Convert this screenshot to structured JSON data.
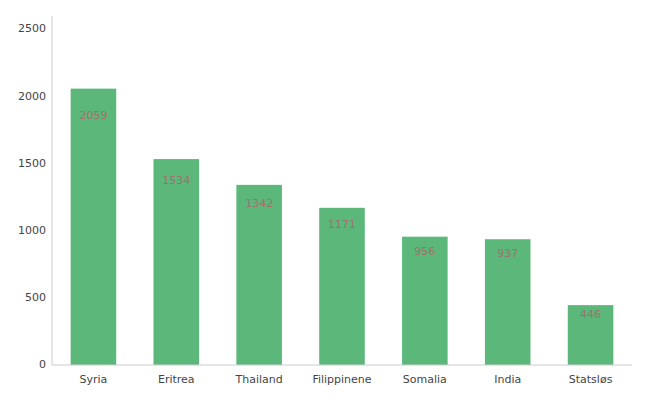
{
  "chart_data": {
    "type": "bar",
    "categories": [
      "Syria",
      "Eritrea",
      "Thailand",
      "Filippinene",
      "Somalia",
      "India",
      "Statsløs"
    ],
    "values": [
      2059,
      1534,
      1342,
      1171,
      956,
      937,
      446
    ],
    "color": "#5cb87a",
    "ylim": [
      0,
      2600
    ],
    "yticks": [
      0,
      500,
      1000,
      1500,
      2000,
      2500
    ],
    "data_labels": true,
    "grid": false
  }
}
